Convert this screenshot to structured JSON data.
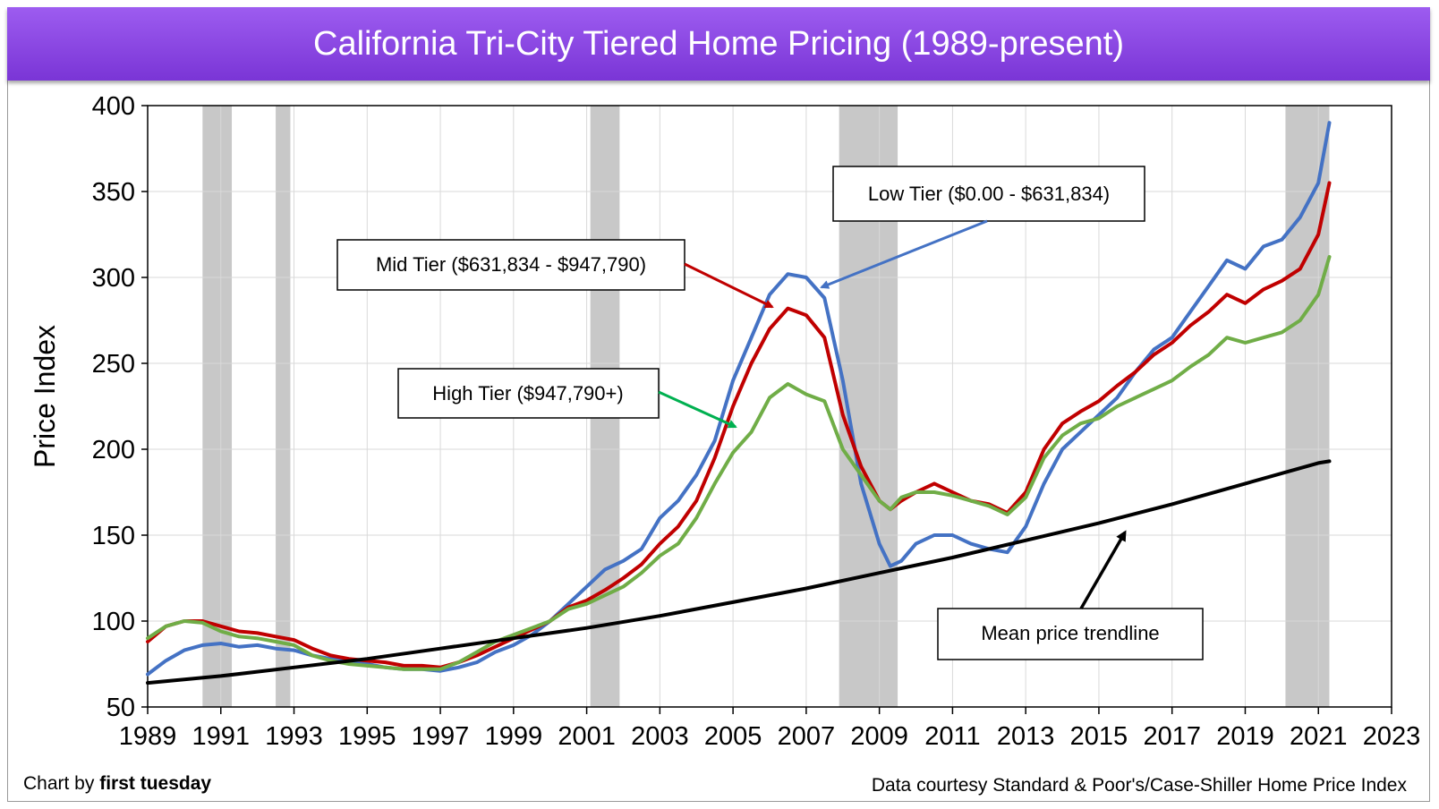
{
  "title": "California Tri-City Tiered Home Pricing (1989-present)",
  "footer": {
    "credit_prefix": "Chart by ",
    "credit_name": "first tuesday",
    "source": "Data courtesy Standard & Poor's/Case-Shiller Home Price Index"
  },
  "colors": {
    "low": "#4472c4",
    "mid": "#c00000",
    "high": "#70ad47",
    "trend": "#000000",
    "recession": "#c8c8c8",
    "title_bar": "#8a45e0"
  },
  "chart_data": {
    "type": "line",
    "title": "California Tri-City Tiered Home Pricing (1989-present)",
    "xlabel": "",
    "ylabel": "Price Index",
    "xlim": [
      1989,
      2023
    ],
    "ylim": [
      50,
      400
    ],
    "x_ticks": [
      1989,
      1991,
      1993,
      1995,
      1997,
      1999,
      2001,
      2003,
      2005,
      2007,
      2009,
      2011,
      2013,
      2015,
      2017,
      2019,
      2021,
      2023
    ],
    "y_ticks": [
      50,
      100,
      150,
      200,
      250,
      300,
      350,
      400
    ],
    "grid": true,
    "recessions": [
      [
        1990.5,
        1991.3
      ],
      [
        1992.5,
        1992.9
      ],
      [
        2001.1,
        2001.9
      ],
      [
        2007.9,
        2009.5
      ],
      [
        2020.1,
        2021.3
      ]
    ],
    "series": [
      {
        "name": "Low Tier ($0.00 - $631,834)",
        "color": "#4472c4",
        "points": [
          [
            1989.0,
            69
          ],
          [
            1989.5,
            77
          ],
          [
            1990.0,
            83
          ],
          [
            1990.5,
            86
          ],
          [
            1991.0,
            87
          ],
          [
            1991.5,
            85
          ],
          [
            1992.0,
            86
          ],
          [
            1992.5,
            84
          ],
          [
            1993.0,
            83
          ],
          [
            1993.5,
            80
          ],
          [
            1994.0,
            78
          ],
          [
            1994.5,
            77
          ],
          [
            1995.0,
            75
          ],
          [
            1995.5,
            73
          ],
          [
            1996.0,
            72
          ],
          [
            1996.5,
            72
          ],
          [
            1997.0,
            71
          ],
          [
            1997.5,
            73
          ],
          [
            1998.0,
            76
          ],
          [
            1998.5,
            82
          ],
          [
            1999.0,
            86
          ],
          [
            1999.5,
            92
          ],
          [
            2000.0,
            100
          ],
          [
            2000.5,
            110
          ],
          [
            2001.0,
            120
          ],
          [
            2001.5,
            130
          ],
          [
            2002.0,
            135
          ],
          [
            2002.5,
            142
          ],
          [
            2003.0,
            160
          ],
          [
            2003.5,
            170
          ],
          [
            2004.0,
            185
          ],
          [
            2004.5,
            205
          ],
          [
            2005.0,
            240
          ],
          [
            2005.5,
            265
          ],
          [
            2006.0,
            290
          ],
          [
            2006.5,
            302
          ],
          [
            2007.0,
            300
          ],
          [
            2007.5,
            288
          ],
          [
            2008.0,
            240
          ],
          [
            2008.5,
            180
          ],
          [
            2009.0,
            145
          ],
          [
            2009.3,
            132
          ],
          [
            2009.6,
            135
          ],
          [
            2010.0,
            145
          ],
          [
            2010.5,
            150
          ],
          [
            2011.0,
            150
          ],
          [
            2011.5,
            145
          ],
          [
            2012.0,
            142
          ],
          [
            2012.5,
            140
          ],
          [
            2013.0,
            155
          ],
          [
            2013.5,
            180
          ],
          [
            2014.0,
            200
          ],
          [
            2014.5,
            210
          ],
          [
            2015.0,
            220
          ],
          [
            2015.5,
            230
          ],
          [
            2016.0,
            245
          ],
          [
            2016.5,
            258
          ],
          [
            2017.0,
            265
          ],
          [
            2017.5,
            280
          ],
          [
            2018.0,
            295
          ],
          [
            2018.5,
            310
          ],
          [
            2019.0,
            305
          ],
          [
            2019.5,
            318
          ],
          [
            2020.0,
            322
          ],
          [
            2020.5,
            335
          ],
          [
            2021.0,
            355
          ],
          [
            2021.3,
            390
          ]
        ]
      },
      {
        "name": "Mid Tier ($631,834 - $947,790)",
        "color": "#c00000",
        "points": [
          [
            1989.0,
            88
          ],
          [
            1989.5,
            97
          ],
          [
            1990.0,
            100
          ],
          [
            1990.5,
            100
          ],
          [
            1991.0,
            97
          ],
          [
            1991.5,
            94
          ],
          [
            1992.0,
            93
          ],
          [
            1992.5,
            91
          ],
          [
            1993.0,
            89
          ],
          [
            1993.5,
            84
          ],
          [
            1994.0,
            80
          ],
          [
            1994.5,
            78
          ],
          [
            1995.0,
            77
          ],
          [
            1995.5,
            76
          ],
          [
            1996.0,
            74
          ],
          [
            1996.5,
            74
          ],
          [
            1997.0,
            73
          ],
          [
            1997.5,
            76
          ],
          [
            1998.0,
            80
          ],
          [
            1998.5,
            85
          ],
          [
            1999.0,
            90
          ],
          [
            1999.5,
            95
          ],
          [
            2000.0,
            100
          ],
          [
            2000.5,
            108
          ],
          [
            2001.0,
            112
          ],
          [
            2001.5,
            118
          ],
          [
            2002.0,
            125
          ],
          [
            2002.5,
            133
          ],
          [
            2003.0,
            145
          ],
          [
            2003.5,
            155
          ],
          [
            2004.0,
            170
          ],
          [
            2004.5,
            195
          ],
          [
            2005.0,
            225
          ],
          [
            2005.5,
            250
          ],
          [
            2006.0,
            270
          ],
          [
            2006.5,
            282
          ],
          [
            2007.0,
            278
          ],
          [
            2007.5,
            265
          ],
          [
            2008.0,
            220
          ],
          [
            2008.5,
            190
          ],
          [
            2009.0,
            170
          ],
          [
            2009.3,
            165
          ],
          [
            2009.6,
            170
          ],
          [
            2010.0,
            175
          ],
          [
            2010.5,
            180
          ],
          [
            2011.0,
            175
          ],
          [
            2011.5,
            170
          ],
          [
            2012.0,
            168
          ],
          [
            2012.5,
            163
          ],
          [
            2013.0,
            175
          ],
          [
            2013.5,
            200
          ],
          [
            2014.0,
            215
          ],
          [
            2014.5,
            222
          ],
          [
            2015.0,
            228
          ],
          [
            2015.5,
            237
          ],
          [
            2016.0,
            245
          ],
          [
            2016.5,
            255
          ],
          [
            2017.0,
            262
          ],
          [
            2017.5,
            272
          ],
          [
            2018.0,
            280
          ],
          [
            2018.5,
            290
          ],
          [
            2019.0,
            285
          ],
          [
            2019.5,
            293
          ],
          [
            2020.0,
            298
          ],
          [
            2020.5,
            305
          ],
          [
            2021.0,
            325
          ],
          [
            2021.3,
            355
          ]
        ]
      },
      {
        "name": "High Tier ($947,790+)",
        "color": "#70ad47",
        "points": [
          [
            1989.0,
            90
          ],
          [
            1989.5,
            97
          ],
          [
            1990.0,
            100
          ],
          [
            1990.5,
            99
          ],
          [
            1991.0,
            94
          ],
          [
            1991.5,
            91
          ],
          [
            1992.0,
            90
          ],
          [
            1992.5,
            88
          ],
          [
            1993.0,
            86
          ],
          [
            1993.5,
            80
          ],
          [
            1994.0,
            77
          ],
          [
            1994.5,
            75
          ],
          [
            1995.0,
            74
          ],
          [
            1995.5,
            73
          ],
          [
            1996.0,
            72
          ],
          [
            1996.5,
            72
          ],
          [
            1997.0,
            72
          ],
          [
            1997.5,
            76
          ],
          [
            1998.0,
            82
          ],
          [
            1998.5,
            88
          ],
          [
            1999.0,
            92
          ],
          [
            1999.5,
            96
          ],
          [
            2000.0,
            100
          ],
          [
            2000.5,
            107
          ],
          [
            2001.0,
            110
          ],
          [
            2001.5,
            115
          ],
          [
            2002.0,
            120
          ],
          [
            2002.5,
            128
          ],
          [
            2003.0,
            138
          ],
          [
            2003.5,
            145
          ],
          [
            2004.0,
            160
          ],
          [
            2004.5,
            180
          ],
          [
            2005.0,
            198
          ],
          [
            2005.5,
            210
          ],
          [
            2006.0,
            230
          ],
          [
            2006.5,
            238
          ],
          [
            2007.0,
            232
          ],
          [
            2007.5,
            228
          ],
          [
            2008.0,
            200
          ],
          [
            2008.5,
            185
          ],
          [
            2009.0,
            170
          ],
          [
            2009.3,
            165
          ],
          [
            2009.6,
            172
          ],
          [
            2010.0,
            175
          ],
          [
            2010.5,
            175
          ],
          [
            2011.0,
            173
          ],
          [
            2011.5,
            170
          ],
          [
            2012.0,
            167
          ],
          [
            2012.5,
            162
          ],
          [
            2013.0,
            172
          ],
          [
            2013.5,
            195
          ],
          [
            2014.0,
            208
          ],
          [
            2014.5,
            215
          ],
          [
            2015.0,
            218
          ],
          [
            2015.5,
            225
          ],
          [
            2016.0,
            230
          ],
          [
            2016.5,
            235
          ],
          [
            2017.0,
            240
          ],
          [
            2017.5,
            248
          ],
          [
            2018.0,
            255
          ],
          [
            2018.5,
            265
          ],
          [
            2019.0,
            262
          ],
          [
            2019.5,
            265
          ],
          [
            2020.0,
            268
          ],
          [
            2020.5,
            275
          ],
          [
            2021.0,
            290
          ],
          [
            2021.3,
            312
          ]
        ]
      },
      {
        "name": "Mean price trendline",
        "color": "#000000",
        "points": [
          [
            1989.0,
            64
          ],
          [
            1991.0,
            68
          ],
          [
            1993.0,
            73
          ],
          [
            1995.0,
            78
          ],
          [
            1997.0,
            84
          ],
          [
            1999.0,
            90
          ],
          [
            2001.0,
            96
          ],
          [
            2003.0,
            103
          ],
          [
            2005.0,
            111
          ],
          [
            2007.0,
            119
          ],
          [
            2009.0,
            128
          ],
          [
            2011.0,
            137
          ],
          [
            2013.0,
            147
          ],
          [
            2015.0,
            157
          ],
          [
            2017.0,
            168
          ],
          [
            2019.0,
            180
          ],
          [
            2021.0,
            192
          ],
          [
            2021.3,
            193
          ]
        ]
      }
    ],
    "annotations": [
      {
        "text": "Low Tier ($0.00 - $631,834)"
      },
      {
        "text": "Mid Tier ($631,834 - $947,790)"
      },
      {
        "text": "High Tier ($947,790+)"
      },
      {
        "text": "Mean price trendline"
      }
    ]
  }
}
